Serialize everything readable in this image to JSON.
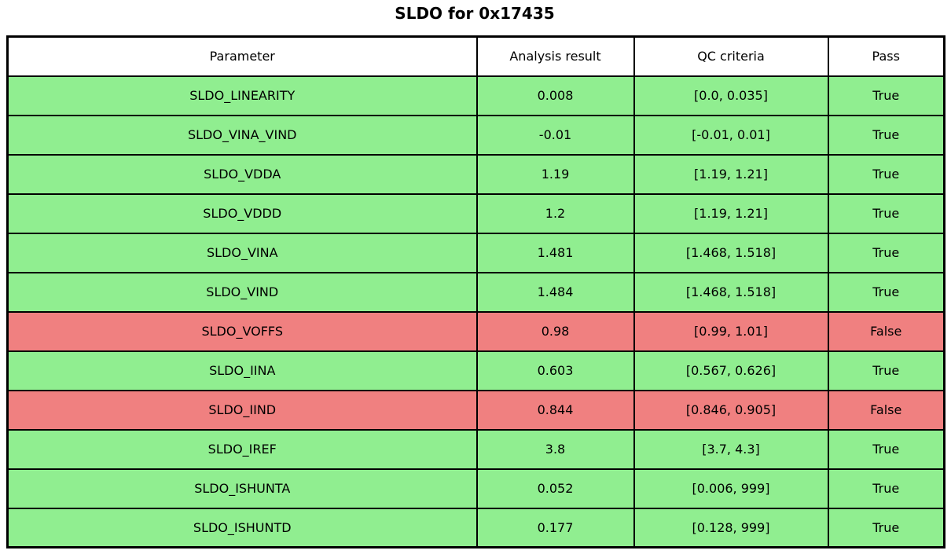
{
  "title": "SLDO for 0x17435",
  "colors": {
    "pass_row": "#90EE90",
    "fail_row": "#F08080",
    "border": "#000000",
    "header_bg": "#FFFFFF",
    "text": "#000000"
  },
  "table": {
    "columns": [
      "Parameter",
      "Analysis result",
      "QC criteria",
      "Pass"
    ],
    "rows": [
      {
        "parameter": "SLDO_LINEARITY",
        "result": "0.008",
        "criteria": "[0.0, 0.035]",
        "pass": "True"
      },
      {
        "parameter": "SLDO_VINA_VIND",
        "result": "-0.01",
        "criteria": "[-0.01, 0.01]",
        "pass": "True"
      },
      {
        "parameter": "SLDO_VDDA",
        "result": "1.19",
        "criteria": "[1.19, 1.21]",
        "pass": "True"
      },
      {
        "parameter": "SLDO_VDDD",
        "result": "1.2",
        "criteria": "[1.19, 1.21]",
        "pass": "True"
      },
      {
        "parameter": "SLDO_VINA",
        "result": "1.481",
        "criteria": "[1.468, 1.518]",
        "pass": "True"
      },
      {
        "parameter": "SLDO_VIND",
        "result": "1.484",
        "criteria": "[1.468, 1.518]",
        "pass": "True"
      },
      {
        "parameter": "SLDO_VOFFS",
        "result": "0.98",
        "criteria": "[0.99, 1.01]",
        "pass": "False"
      },
      {
        "parameter": "SLDO_IINA",
        "result": "0.603",
        "criteria": "[0.567, 0.626]",
        "pass": "True"
      },
      {
        "parameter": "SLDO_IIND",
        "result": "0.844",
        "criteria": "[0.846, 0.905]",
        "pass": "False"
      },
      {
        "parameter": "SLDO_IREF",
        "result": "3.8",
        "criteria": "[3.7, 4.3]",
        "pass": "True"
      },
      {
        "parameter": "SLDO_ISHUNTA",
        "result": "0.052",
        "criteria": "[0.006, 999]",
        "pass": "True"
      },
      {
        "parameter": "SLDO_ISHUNTD",
        "result": "0.177",
        "criteria": "[0.128, 999]",
        "pass": "True"
      }
    ]
  },
  "chart_data": {
    "type": "table",
    "title": "SLDO for 0x17435",
    "columns": [
      "Parameter",
      "Analysis result",
      "QC criteria",
      "Pass"
    ],
    "rows": [
      [
        "SLDO_LINEARITY",
        0.008,
        "[0.0, 0.035]",
        true
      ],
      [
        "SLDO_VINA_VIND",
        -0.01,
        "[-0.01, 0.01]",
        true
      ],
      [
        "SLDO_VDDA",
        1.19,
        "[1.19, 1.21]",
        true
      ],
      [
        "SLDO_VDDD",
        1.2,
        "[1.19, 1.21]",
        true
      ],
      [
        "SLDO_VINA",
        1.481,
        "[1.468, 1.518]",
        true
      ],
      [
        "SLDO_VIND",
        1.484,
        "[1.468, 1.518]",
        true
      ],
      [
        "SLDO_VOFFS",
        0.98,
        "[0.99, 1.01]",
        false
      ],
      [
        "SLDO_IINA",
        0.603,
        "[0.567, 0.626]",
        true
      ],
      [
        "SLDO_IIND",
        0.844,
        "[0.846, 0.905]",
        false
      ],
      [
        "SLDO_IREF",
        3.8,
        "[3.7, 4.3]",
        true
      ],
      [
        "SLDO_ISHUNTA",
        0.052,
        "[0.006, 999]",
        true
      ],
      [
        "SLDO_ISHUNTD",
        0.177,
        "[0.128, 999]",
        true
      ]
    ],
    "row_color_rule": "green #90EE90 when pass is True, light coral #F08080 when False"
  }
}
